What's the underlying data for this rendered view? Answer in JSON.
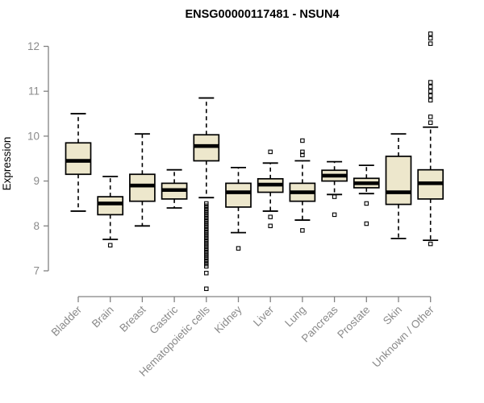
{
  "page": {
    "title": "ENSG00000117481 - NSUN4"
  },
  "chart_data": {
    "type": "boxplot",
    "title": "ENSG00000117481 - NSUN4",
    "ylabel": "Expression",
    "ylim": [
      6.5,
      12.4
    ],
    "yticks": [
      7,
      8,
      9,
      10,
      11,
      12
    ],
    "grid": false,
    "legend": "none",
    "categories": [
      "Bladder",
      "Brain",
      "Breast",
      "Gastric",
      "Hematopoietic cells",
      "Kidney",
      "Liver",
      "Lung",
      "Pancreas",
      "Prostate",
      "Skin",
      "Unknown / Other"
    ],
    "series": [
      {
        "name": "Bladder",
        "whisker_low": 8.33,
        "q1": 9.15,
        "median": 9.45,
        "q3": 9.85,
        "whisker_high": 10.5,
        "outliers": []
      },
      {
        "name": "Brain",
        "whisker_low": 7.7,
        "q1": 8.25,
        "median": 8.5,
        "q3": 8.65,
        "whisker_high": 9.1,
        "outliers": [
          7.57
        ]
      },
      {
        "name": "Breast",
        "whisker_low": 8.0,
        "q1": 8.55,
        "median": 8.9,
        "q3": 9.15,
        "whisker_high": 10.05,
        "outliers": []
      },
      {
        "name": "Gastric",
        "whisker_low": 8.4,
        "q1": 8.6,
        "median": 8.8,
        "q3": 8.95,
        "whisker_high": 9.25,
        "outliers": []
      },
      {
        "name": "Hematopoietic cells",
        "whisker_low": 8.63,
        "q1": 9.45,
        "median": 9.78,
        "q3": 10.03,
        "whisker_high": 10.85,
        "outliers": [
          8.5,
          8.45,
          8.4,
          8.35,
          8.3,
          8.25,
          8.2,
          8.15,
          8.1,
          8.05,
          8.0,
          7.95,
          7.9,
          7.85,
          7.8,
          7.75,
          7.7,
          7.65,
          7.6,
          7.55,
          7.5,
          7.45,
          7.4,
          7.35,
          7.3,
          7.25,
          7.2,
          7.15,
          7.1,
          6.95,
          6.6
        ]
      },
      {
        "name": "Kidney",
        "whisker_low": 7.85,
        "q1": 8.42,
        "median": 8.75,
        "q3": 8.95,
        "whisker_high": 9.3,
        "outliers": [
          7.5
        ]
      },
      {
        "name": "Liver",
        "whisker_low": 8.33,
        "q1": 8.75,
        "median": 8.92,
        "q3": 9.05,
        "whisker_high": 9.4,
        "outliers": [
          9.65,
          8.2,
          8.0
        ]
      },
      {
        "name": "Lung",
        "whisker_low": 8.13,
        "q1": 8.55,
        "median": 8.75,
        "q3": 8.95,
        "whisker_high": 9.45,
        "outliers": [
          9.9,
          9.65,
          9.58,
          7.9
        ]
      },
      {
        "name": "Pancreas",
        "whisker_low": 8.7,
        "q1": 9.0,
        "median": 9.12,
        "q3": 9.24,
        "whisker_high": 9.43,
        "outliers": [
          8.65,
          8.25
        ]
      },
      {
        "name": "Prostate",
        "whisker_low": 8.72,
        "q1": 8.85,
        "median": 8.95,
        "q3": 9.06,
        "whisker_high": 9.35,
        "outliers": [
          8.5,
          8.05
        ]
      },
      {
        "name": "Skin",
        "whisker_low": 7.72,
        "q1": 8.48,
        "median": 8.75,
        "q3": 9.55,
        "whisker_high": 10.05,
        "outliers": []
      },
      {
        "name": "Unknown / Other",
        "whisker_low": 7.68,
        "q1": 8.6,
        "median": 8.95,
        "q3": 9.25,
        "whisker_high": 10.2,
        "outliers": [
          12.28,
          12.18,
          12.06,
          11.2,
          11.1,
          11.0,
          10.9,
          10.8,
          10.43,
          10.3,
          7.6
        ]
      }
    ],
    "colors": {
      "box_fill": "#EDE7CC",
      "box_border": "#000000",
      "median": "#000000",
      "whisker": "#000000",
      "axis": "#828282",
      "text": "#8A8A8A",
      "title": "#000000",
      "background": "#FFFFFF"
    }
  }
}
